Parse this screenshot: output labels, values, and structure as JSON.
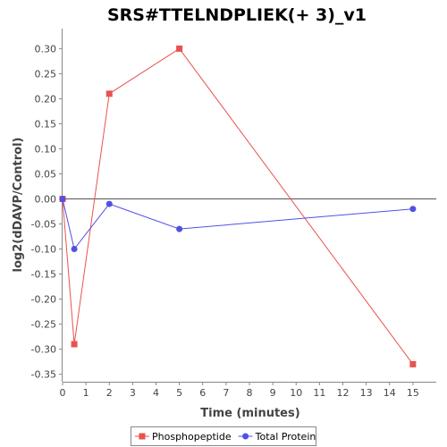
{
  "chart_data": {
    "type": "line",
    "title": "SRS#TTELNDPLIEK(+ 3)_v1",
    "xlabel": "Time (minutes)",
    "ylabel": "log2(dDAVP/Control)",
    "xlim": [
      0,
      16
    ],
    "ylim": [
      -0.365,
      0.34
    ],
    "x_ticks": [
      0,
      1,
      2,
      3,
      4,
      5,
      6,
      7,
      8,
      9,
      10,
      11,
      12,
      13,
      14,
      15
    ],
    "y_ticks": [
      0.3,
      0.25,
      0.2,
      0.15,
      0.1,
      0.05,
      0.0,
      -0.05,
      -0.1,
      -0.15,
      -0.2,
      -0.25,
      -0.3,
      -0.35
    ],
    "x_tick_labels": [
      "0",
      "1",
      "2",
      "3",
      "4",
      "5",
      "6",
      "7",
      "8",
      "9",
      "10",
      "11",
      "12",
      "13",
      "14",
      "15"
    ],
    "y_tick_labels": [
      "0.30",
      "0.25",
      "0.20",
      "0.15",
      "0.10",
      "0.05",
      "0.00",
      "-0.05",
      "-0.10",
      "-0.15",
      "-0.20",
      "-0.25",
      "-0.30",
      "-0.35"
    ],
    "zero_line": true,
    "grid": false,
    "legend_position": "bottom",
    "series": [
      {
        "name": "Phosphopeptide",
        "color": "#e8534f",
        "marker": "square",
        "x": [
          0,
          0.5,
          2,
          5,
          15
        ],
        "y": [
          0.0,
          -0.29,
          0.21,
          0.3,
          -0.33
        ]
      },
      {
        "name": "Total Protein",
        "color": "#5050e6",
        "marker": "circle",
        "x": [
          0,
          0.5,
          2,
          5,
          15
        ],
        "y": [
          0.0,
          -0.1,
          -0.01,
          -0.06,
          -0.02
        ]
      }
    ]
  }
}
